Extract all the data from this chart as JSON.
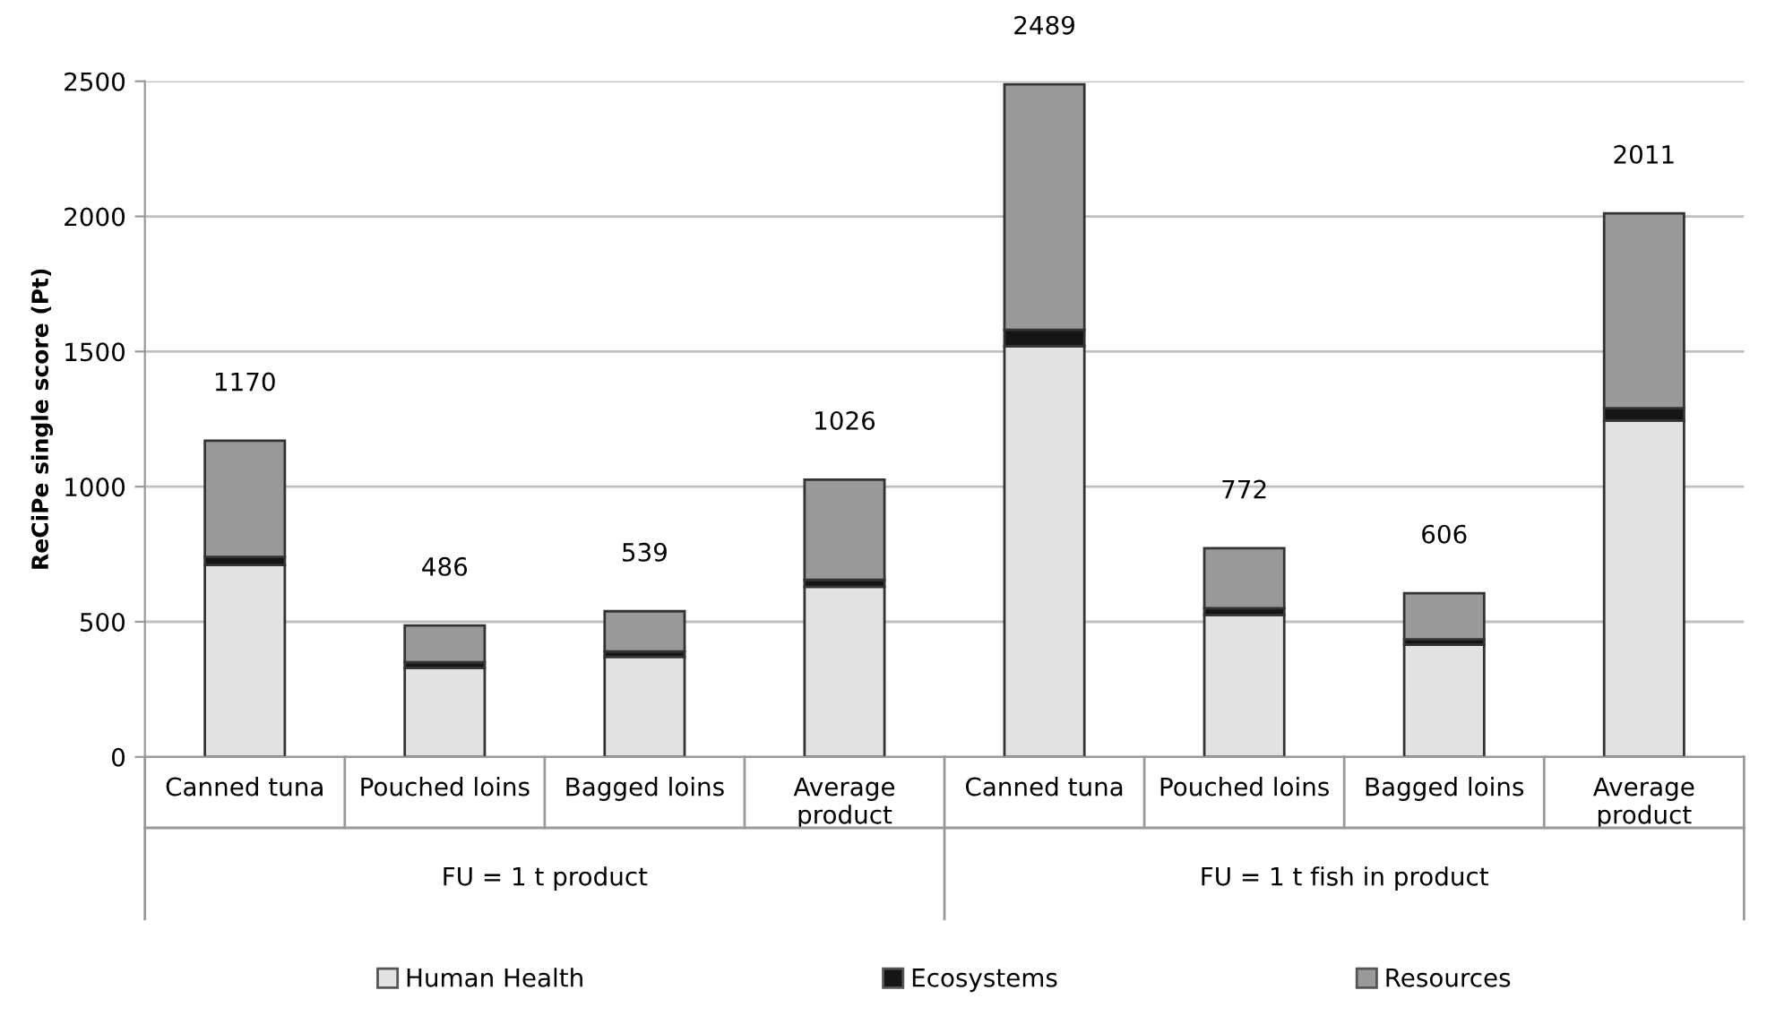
{
  "chart_data": {
    "type": "bar",
    "stacked": true,
    "ylabel": "ReCiPe single score (Pt)",
    "categories": [
      "Canned tuna",
      "Pouched loins",
      "Bagged loins",
      "Average\nproduct",
      "Canned tuna",
      "Pouched loins",
      "Bagged loins",
      "Average\nproduct"
    ],
    "series": [
      {
        "name": "Human Health",
        "color": "#e2e2e2",
        "values": [
          710,
          330,
          370,
          630,
          1520,
          525,
          415,
          1245
        ]
      },
      {
        "name": "Ecosystems",
        "color": "#151515",
        "values": [
          30,
          20,
          20,
          25,
          60,
          25,
          20,
          45
        ]
      },
      {
        "name": "Resources",
        "color": "#999999",
        "values": [
          430,
          136,
          149,
          371,
          909,
          222,
          171,
          721
        ]
      }
    ],
    "totals": [
      "1170",
      "486",
      "539",
      "1026",
      "2489",
      "772",
      "606",
      "2011"
    ],
    "annotations": [
      "FU = 1 t product",
      "FU = 1 t fish in product"
    ],
    "ylim": [
      0,
      2500
    ],
    "yticks": [
      0,
      500,
      1000,
      1500,
      2000,
      2500
    ],
    "grid": "y",
    "legend": "bottom"
  }
}
